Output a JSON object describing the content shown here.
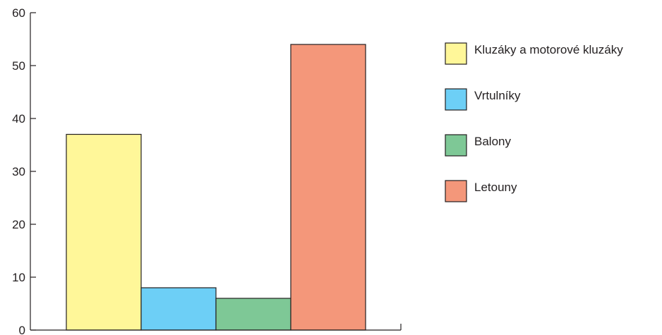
{
  "chart_data": {
    "type": "bar",
    "title": "",
    "xlabel": "",
    "ylabel": "",
    "ylim": [
      0,
      60
    ],
    "yticks": [
      0,
      10,
      20,
      30,
      40,
      50,
      60
    ],
    "grid": false,
    "legend_position": "right",
    "series": [
      {
        "name": "Kluzáky a motorové kluzáky",
        "value": 37,
        "color": "#fff799"
      },
      {
        "name": "Vrtulníky",
        "value": 8,
        "color": "#6dcff6"
      },
      {
        "name": "Balony",
        "value": 6,
        "color": "#7ec896"
      },
      {
        "name": "Letouny",
        "value": 54,
        "color": "#f4977a"
      }
    ]
  }
}
